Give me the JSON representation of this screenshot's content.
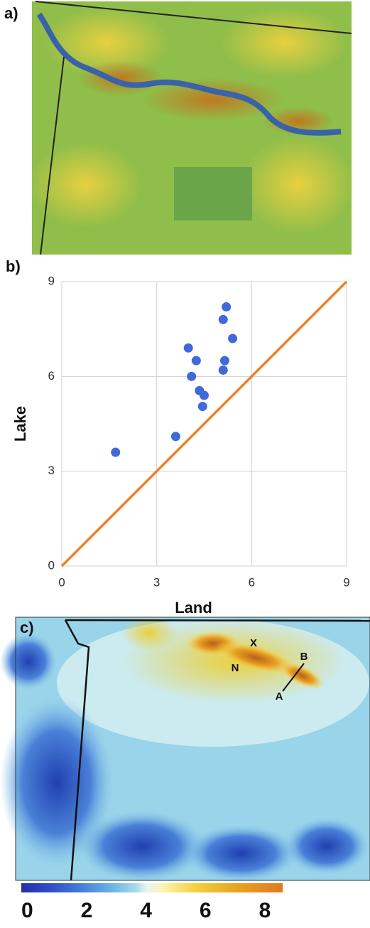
{
  "panel_labels": [
    "a)",
    "b)",
    "c)"
  ],
  "map_labels": [
    "X",
    "N",
    "B",
    "A"
  ],
  "colorbar": {
    "lim": [
      -0.2,
      8.6
    ],
    "ticks": [
      0,
      2,
      4,
      6,
      8
    ]
  },
  "chart_data": {
    "type": "scatter",
    "xlabel": "Land",
    "ylabel": "Lake",
    "xlim": [
      0,
      9
    ],
    "ylim": [
      0,
      9
    ],
    "xticks": [
      0,
      3,
      6,
      9
    ],
    "yticks": [
      0,
      3,
      6,
      9
    ],
    "grid": true,
    "series": [
      {
        "type": "scatter",
        "color": "#4169d8",
        "x": [
          1.7,
          3.6,
          4.0,
          4.1,
          4.25,
          4.35,
          4.5,
          4.45,
          5.1,
          5.2,
          5.15,
          5.1,
          5.4
        ],
        "values": [
          3.6,
          4.1,
          6.9,
          6.0,
          6.5,
          5.55,
          5.4,
          5.05,
          7.8,
          8.2,
          6.5,
          6.2,
          7.2
        ]
      },
      {
        "type": "line",
        "color": "#f07f2a",
        "x": [
          0,
          9
        ],
        "values": [
          0,
          9
        ]
      }
    ]
  }
}
